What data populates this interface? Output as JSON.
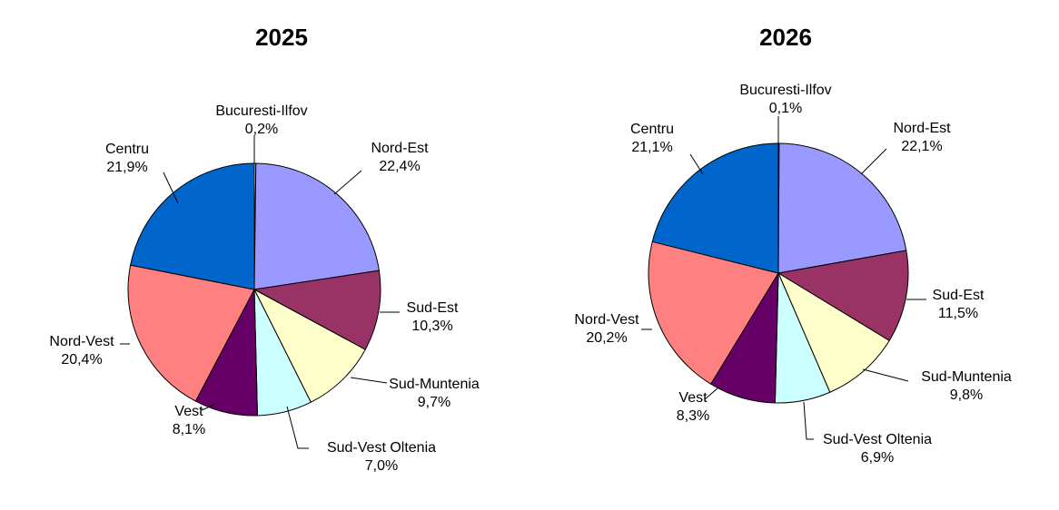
{
  "chart_data": [
    {
      "type": "pie",
      "title": "2025",
      "slices": [
        {
          "label": "Bucuresti-Ilfov",
          "value": 0.2,
          "value_label": "0,2%",
          "color": "#ffffff"
        },
        {
          "label": "Nord-Est",
          "value": 22.4,
          "value_label": "22,4%",
          "color": "#9999ff"
        },
        {
          "label": "Sud-Est",
          "value": 10.3,
          "value_label": "10,3%",
          "color": "#993366"
        },
        {
          "label": "Sud-Muntenia",
          "value": 9.7,
          "value_label": "9,7%",
          "color": "#ffffcc"
        },
        {
          "label": "Sud-Vest Oltenia",
          "value": 7.0,
          "value_label": "7,0%",
          "color": "#ccffff"
        },
        {
          "label": "Vest",
          "value": 8.1,
          "value_label": "8,1%",
          "color": "#660066"
        },
        {
          "label": "Nord-Vest",
          "value": 20.4,
          "value_label": "20,4%",
          "color": "#ff8080"
        },
        {
          "label": "Centru",
          "value": 21.9,
          "value_label": "21,9%",
          "color": "#0066cc"
        }
      ]
    },
    {
      "type": "pie",
      "title": "2026",
      "slices": [
        {
          "label": "Bucuresti-Ilfov",
          "value": 0.1,
          "value_label": "0,1%",
          "color": "#ffffff"
        },
        {
          "label": "Nord-Est",
          "value": 22.1,
          "value_label": "22,1%",
          "color": "#9999ff"
        },
        {
          "label": "Sud-Est",
          "value": 11.5,
          "value_label": "11,5%",
          "color": "#993366"
        },
        {
          "label": "Sud-Muntenia",
          "value": 9.8,
          "value_label": "9,8%",
          "color": "#ffffcc"
        },
        {
          "label": "Sud-Vest Oltenia",
          "value": 6.9,
          "value_label": "6,9%",
          "color": "#ccffff"
        },
        {
          "label": "Vest",
          "value": 8.3,
          "value_label": "8,3%",
          "color": "#660066"
        },
        {
          "label": "Nord-Vest",
          "value": 20.2,
          "value_label": "20,2%",
          "color": "#ff8080"
        },
        {
          "label": "Centru",
          "value": 21.1,
          "value_label": "21,1%",
          "color": "#0066cc"
        }
      ]
    }
  ]
}
